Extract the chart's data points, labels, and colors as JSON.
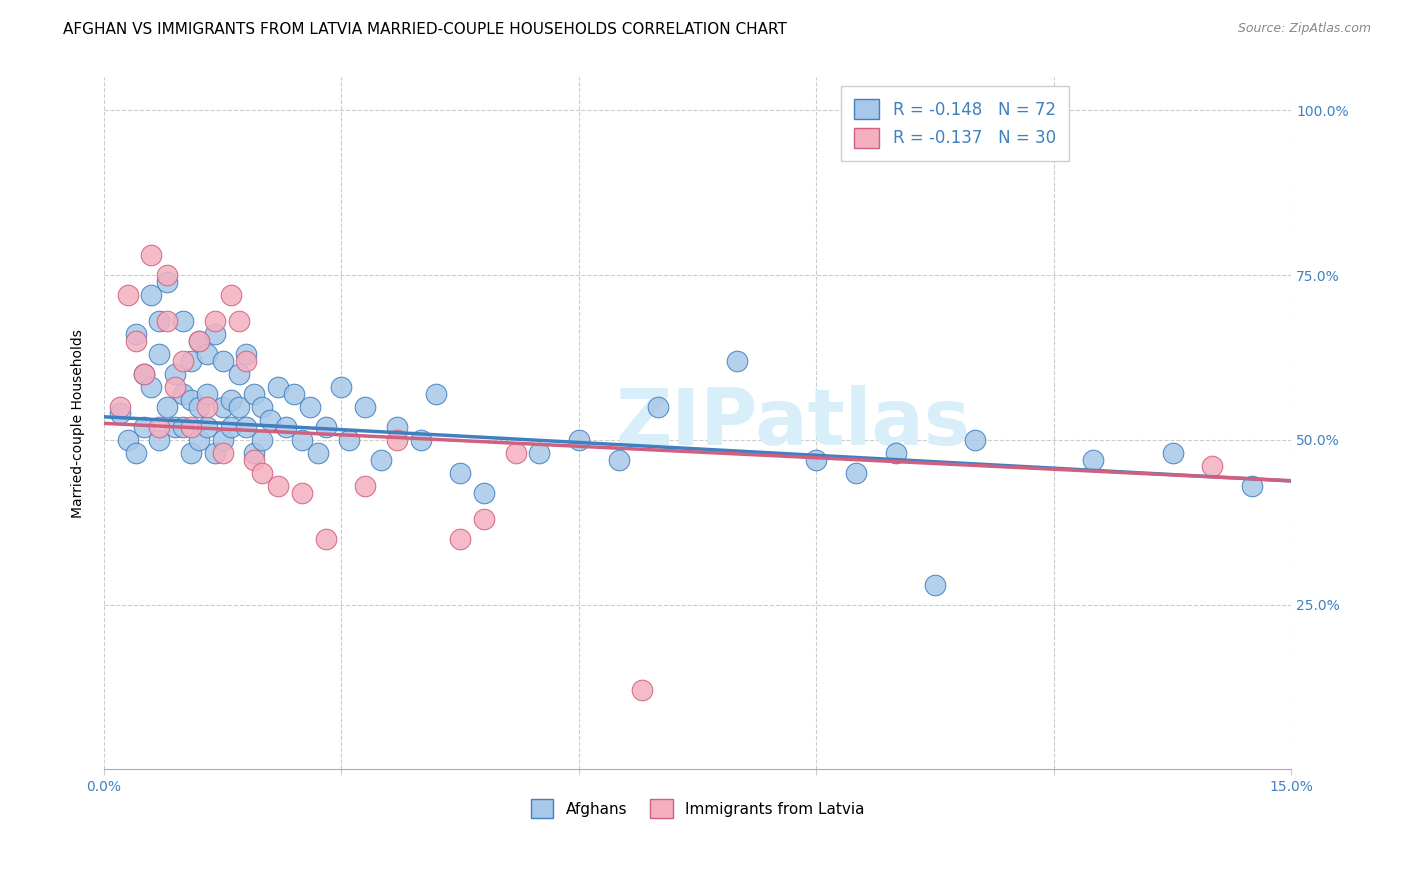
{
  "title": "AFGHAN VS IMMIGRANTS FROM LATVIA MARRIED-COUPLE HOUSEHOLDS CORRELATION CHART",
  "source": "Source: ZipAtlas.com",
  "ylabel": "Married-couple Households",
  "xlabel_afghans": "Afghans",
  "xlabel_latvia": "Immigrants from Latvia",
  "xlim": [
    0.0,
    0.15
  ],
  "ylim": [
    0.0,
    1.05
  ],
  "yticks": [
    0.25,
    0.5,
    0.75,
    1.0
  ],
  "ytick_labels": [
    "25.0%",
    "50.0%",
    "75.0%",
    "100.0%"
  ],
  "xticks": [
    0.0,
    0.03,
    0.06,
    0.09,
    0.12,
    0.15
  ],
  "xtick_labels": [
    "0.0%",
    "",
    "",
    "",
    "",
    "15.0%"
  ],
  "color_blue": "#a8c8e8",
  "color_pink": "#f4b0c0",
  "line_color_blue": "#4080c0",
  "line_color_pink": "#d06080",
  "R_blue": -0.148,
  "N_blue": 72,
  "R_pink": -0.137,
  "N_pink": 30,
  "watermark": "ZIPatlas",
  "blue_intercept": 0.535,
  "blue_slope": -0.65,
  "pink_intercept": 0.525,
  "pink_slope": -0.58,
  "blue_scatter_x": [
    0.002,
    0.003,
    0.004,
    0.004,
    0.005,
    0.005,
    0.006,
    0.006,
    0.007,
    0.007,
    0.007,
    0.008,
    0.008,
    0.009,
    0.009,
    0.01,
    0.01,
    0.01,
    0.011,
    0.011,
    0.011,
    0.012,
    0.012,
    0.012,
    0.013,
    0.013,
    0.013,
    0.014,
    0.014,
    0.015,
    0.015,
    0.015,
    0.016,
    0.016,
    0.017,
    0.017,
    0.018,
    0.018,
    0.019,
    0.019,
    0.02,
    0.02,
    0.021,
    0.022,
    0.023,
    0.024,
    0.025,
    0.026,
    0.027,
    0.028,
    0.03,
    0.031,
    0.033,
    0.035,
    0.037,
    0.04,
    0.042,
    0.045,
    0.048,
    0.055,
    0.06,
    0.065,
    0.07,
    0.08,
    0.09,
    0.095,
    0.1,
    0.105,
    0.11,
    0.125,
    0.135,
    0.145
  ],
  "blue_scatter_y": [
    0.54,
    0.5,
    0.48,
    0.66,
    0.6,
    0.52,
    0.72,
    0.58,
    0.5,
    0.63,
    0.68,
    0.55,
    0.74,
    0.6,
    0.52,
    0.57,
    0.68,
    0.52,
    0.62,
    0.56,
    0.48,
    0.65,
    0.55,
    0.5,
    0.63,
    0.57,
    0.52,
    0.66,
    0.48,
    0.55,
    0.62,
    0.5,
    0.56,
    0.52,
    0.6,
    0.55,
    0.63,
    0.52,
    0.57,
    0.48,
    0.55,
    0.5,
    0.53,
    0.58,
    0.52,
    0.57,
    0.5,
    0.55,
    0.48,
    0.52,
    0.58,
    0.5,
    0.55,
    0.47,
    0.52,
    0.5,
    0.57,
    0.45,
    0.42,
    0.48,
    0.5,
    0.47,
    0.55,
    0.62,
    0.47,
    0.45,
    0.48,
    0.28,
    0.5,
    0.47,
    0.48,
    0.43
  ],
  "pink_scatter_x": [
    0.002,
    0.003,
    0.004,
    0.005,
    0.006,
    0.007,
    0.008,
    0.008,
    0.009,
    0.01,
    0.011,
    0.012,
    0.013,
    0.014,
    0.015,
    0.016,
    0.017,
    0.018,
    0.019,
    0.02,
    0.022,
    0.025,
    0.028,
    0.033,
    0.037,
    0.045,
    0.048,
    0.052,
    0.068,
    0.14
  ],
  "pink_scatter_y": [
    0.55,
    0.72,
    0.65,
    0.6,
    0.78,
    0.52,
    0.68,
    0.75,
    0.58,
    0.62,
    0.52,
    0.65,
    0.55,
    0.68,
    0.48,
    0.72,
    0.68,
    0.62,
    0.47,
    0.45,
    0.43,
    0.42,
    0.35,
    0.43,
    0.5,
    0.35,
    0.38,
    0.48,
    0.12,
    0.46
  ],
  "title_fontsize": 11,
  "axis_label_fontsize": 10,
  "tick_fontsize": 10,
  "legend_fontsize": 12
}
